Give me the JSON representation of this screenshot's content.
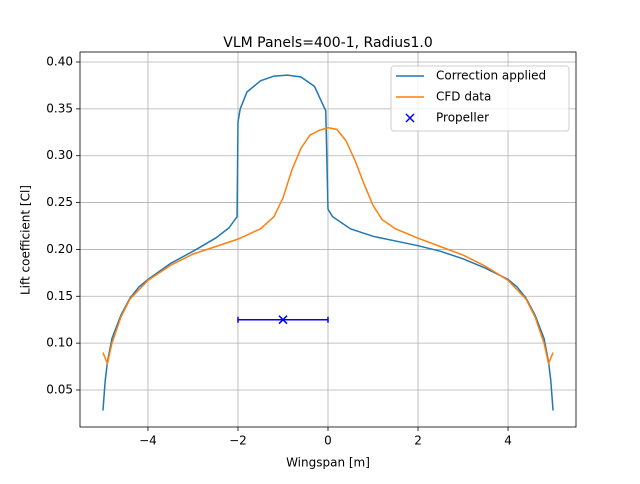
{
  "chart_data": {
    "type": "line",
    "title": "VLM Panels=400-1, Radius1.0",
    "x_label": "Wingspan [m]",
    "y_label": "Lift coefficient [Cl]",
    "xlim": [
      -5.51,
      5.51
    ],
    "ylim": [
      0.0105,
      0.4107
    ],
    "xticks": [
      {
        "value": -4,
        "label": "−4"
      },
      {
        "value": -2,
        "label": "−2"
      },
      0,
      2,
      4
    ],
    "yticks": [
      0.05,
      {
        "value": 0.1,
        "label": "0.10"
      },
      0.15,
      {
        "value": 0.2,
        "label": "0.20"
      },
      0.25,
      {
        "value": 0.3,
        "label": "0.30"
      },
      0.35,
      {
        "value": 0.4,
        "label": "0.40"
      }
    ],
    "grid": true,
    "legend": "upper right",
    "series": [
      {
        "name": "Correction applied",
        "color": "#1f77b4",
        "x": [
          -5,
          -4.95,
          -4.9,
          -4.8,
          -4.6,
          -4.4,
          -4.2,
          -4,
          -3.5,
          -3,
          -2.5,
          -2.2,
          -2.02,
          -2,
          -1.95,
          -1.8,
          -1.5,
          -1.2,
          -0.9,
          -0.6,
          -0.3,
          -0.05,
          0,
          0.1,
          0.5,
          1,
          2,
          2.5,
          3,
          3.5,
          4,
          4.2,
          4.4,
          4.6,
          4.8,
          4.9,
          4.95,
          5
        ],
        "values": [
          0.028,
          0.06,
          0.08,
          0.105,
          0.13,
          0.148,
          0.16,
          0.168,
          0.185,
          0.198,
          0.212,
          0.223,
          0.235,
          0.336,
          0.35,
          0.368,
          0.38,
          0.385,
          0.386,
          0.384,
          0.374,
          0.348,
          0.243,
          0.235,
          0.222,
          0.214,
          0.204,
          0.198,
          0.19,
          0.18,
          0.168,
          0.16,
          0.148,
          0.13,
          0.105,
          0.08,
          0.06,
          0.028
        ]
      },
      {
        "name": "CFD data",
        "color": "#ff7f0e",
        "x": [
          -5,
          -4.9,
          -4.8,
          -4.6,
          -4.4,
          -4,
          -3.5,
          -3,
          -2.5,
          -2,
          -1.5,
          -1.2,
          -1,
          -0.8,
          -0.6,
          -0.4,
          -0.2,
          0,
          0.2,
          0.4,
          0.6,
          0.8,
          1,
          1.2,
          1.5,
          2,
          2.5,
          3,
          3.5,
          4,
          4.4,
          4.6,
          4.8,
          4.9,
          5
        ],
        "values": [
          0.09,
          0.078,
          0.1,
          0.128,
          0.147,
          0.167,
          0.183,
          0.195,
          0.203,
          0.211,
          0.222,
          0.235,
          0.255,
          0.285,
          0.308,
          0.322,
          0.327,
          0.33,
          0.328,
          0.316,
          0.295,
          0.27,
          0.247,
          0.232,
          0.222,
          0.212,
          0.203,
          0.194,
          0.182,
          0.167,
          0.147,
          0.128,
          0.1,
          0.078,
          0.09
        ]
      },
      {
        "name": "Propeller",
        "color": "#0000ff",
        "marker": "x",
        "x": [
          -1
        ],
        "values": [
          0.125
        ],
        "xerr": [
          1
        ]
      }
    ]
  }
}
